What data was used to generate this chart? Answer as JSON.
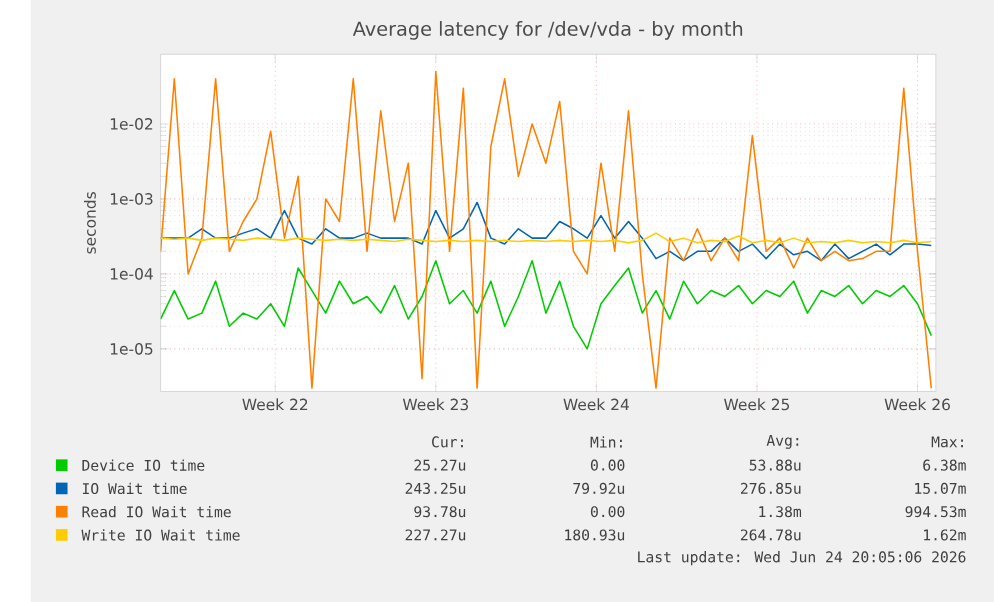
{
  "chart_data": {
    "type": "line",
    "title": "Average latency for /dev/vda - by month",
    "ylabel": "seconds",
    "log": true,
    "grid": true,
    "legend": "bottom",
    "x": [
      "2026-05-20T00:00",
      "2026-05-20T14:24",
      "2026-05-21T04:48",
      "2026-05-21T19:12",
      "2026-05-22T09:36",
      "2026-05-23T00:00",
      "2026-05-23T14:24",
      "2026-05-24T04:48",
      "2026-05-24T19:12",
      "2026-05-25T09:36",
      "2026-05-26T00:00",
      "2026-05-26T14:24",
      "2026-05-27T04:48",
      "2026-05-27T19:12",
      "2026-05-28T09:36",
      "2026-05-29T00:00",
      "2026-05-29T14:24",
      "2026-05-30T04:48",
      "2026-05-30T19:12",
      "2026-05-31T09:36",
      "2026-06-01T00:00",
      "2026-06-01T14:24",
      "2026-06-02T04:48",
      "2026-06-02T19:12",
      "2026-06-03T09:36",
      "2026-06-04T00:00",
      "2026-06-04T14:24",
      "2026-06-05T04:48",
      "2026-06-05T19:12",
      "2026-06-06T09:36",
      "2026-06-07T00:00",
      "2026-06-07T14:24",
      "2026-06-08T04:48",
      "2026-06-08T19:12",
      "2026-06-09T09:36",
      "2026-06-10T00:00",
      "2026-06-10T14:24",
      "2026-06-11T04:48",
      "2026-06-11T19:12",
      "2026-06-12T09:36",
      "2026-06-13T00:00",
      "2026-06-13T14:24",
      "2026-06-14T04:48",
      "2026-06-14T19:12",
      "2026-06-15T09:36",
      "2026-06-16T00:00",
      "2026-06-16T14:24",
      "2026-06-17T04:48",
      "2026-06-17T19:12",
      "2026-06-18T09:36",
      "2026-06-19T00:00",
      "2026-06-19T14:24",
      "2026-06-20T04:48",
      "2026-06-20T19:12",
      "2026-06-21T09:36",
      "2026-06-22T00:00",
      "2026-06-22T14:24"
    ],
    "xlim": [
      "2026-05-20T00:00",
      "2026-06-22T19:12"
    ],
    "xticks": [
      {
        "value": "2026-05-25",
        "label": "Week 22"
      },
      {
        "value": "2026-06-01",
        "label": "Week 23"
      },
      {
        "value": "2026-06-08",
        "label": "Week 24"
      },
      {
        "value": "2026-06-15",
        "label": "Week 25"
      },
      {
        "value": "2026-06-22",
        "label": "Week 26"
      }
    ],
    "ylim": [
      2.7e-06,
      0.085
    ],
    "yticks": [
      {
        "value": 1e-05,
        "label": "1e-05"
      },
      {
        "value": 0.0001,
        "label": "1e-04"
      },
      {
        "value": 0.001,
        "label": "1e-03"
      },
      {
        "value": 0.01,
        "label": "1e-02"
      }
    ],
    "series": [
      {
        "name": "Device IO time",
        "color": "#00cc00",
        "values": [
          2.5e-05,
          6e-05,
          2.5e-05,
          3e-05,
          8e-05,
          2e-05,
          3e-05,
          2.5e-05,
          4e-05,
          2e-05,
          0.00012,
          6e-05,
          3e-05,
          8e-05,
          4e-05,
          5e-05,
          3e-05,
          7e-05,
          2.5e-05,
          5e-05,
          0.00015,
          4e-05,
          6e-05,
          3e-05,
          8e-05,
          2e-05,
          5e-05,
          0.00015,
          3e-05,
          8e-05,
          2e-05,
          1e-05,
          4e-05,
          7e-05,
          0.00012,
          3e-05,
          6e-05,
          2.5e-05,
          8e-05,
          4e-05,
          6e-05,
          5e-05,
          7e-05,
          4e-05,
          6e-05,
          5e-05,
          8e-05,
          3e-05,
          6e-05,
          5e-05,
          7e-05,
          4e-05,
          6e-05,
          5e-05,
          7e-05,
          4e-05,
          1.5e-05
        ]
      },
      {
        "name": "IO Wait time",
        "color": "#0066b3",
        "values": [
          0.0003,
          0.0003,
          0.0003,
          0.0004,
          0.0003,
          0.0003,
          0.00035,
          0.0004,
          0.0003,
          0.0007,
          0.0003,
          0.00025,
          0.0004,
          0.0003,
          0.0003,
          0.00035,
          0.0003,
          0.0003,
          0.0003,
          0.00025,
          0.0007,
          0.0003,
          0.0004,
          0.0009,
          0.0003,
          0.00025,
          0.0004,
          0.0003,
          0.0003,
          0.0005,
          0.0004,
          0.0003,
          0.0006,
          0.0003,
          0.0005,
          0.0003,
          0.00016,
          0.0002,
          0.00015,
          0.0002,
          0.0002,
          0.0003,
          0.0002,
          0.00025,
          0.00016,
          0.00025,
          0.00018,
          0.0002,
          0.00015,
          0.00025,
          0.00016,
          0.0002,
          0.00025,
          0.00018,
          0.00025,
          0.00025,
          0.00024
        ]
      },
      {
        "name": "Read IO Wait time",
        "color": "#ff8000",
        "values": [
          0.0002,
          0.04,
          0.0001,
          0.0003,
          0.04,
          0.0002,
          0.0005,
          0.001,
          0.008,
          0.0003,
          0.002,
          3e-06,
          0.001,
          0.0005,
          0.04,
          0.0002,
          0.015,
          0.0005,
          0.003,
          4e-06,
          0.05,
          0.0002,
          0.03,
          3e-06,
          0.005,
          0.04,
          0.002,
          0.01,
          0.003,
          0.02,
          0.0002,
          0.0001,
          0.003,
          0.0002,
          0.015,
          0.0001,
          3e-06,
          0.0003,
          0.00015,
          0.0004,
          0.00015,
          0.0003,
          0.00015,
          0.007,
          0.0002,
          0.0003,
          0.00012,
          0.0003,
          0.00015,
          0.0002,
          0.00015,
          0.00016,
          0.0002,
          0.0002,
          0.03,
          0.0002,
          3e-06
        ]
      },
      {
        "name": "Write IO Wait time",
        "color": "#ffcc00",
        "values": [
          0.0003,
          0.00029,
          0.0003,
          0.00028,
          0.0003,
          0.00029,
          0.00028,
          0.0003,
          0.00029,
          0.00028,
          0.0003,
          0.00029,
          0.00028,
          0.00029,
          0.00028,
          0.00029,
          0.00028,
          0.00027,
          0.00029,
          0.00028,
          0.00027,
          0.00028,
          0.00027,
          0.00028,
          0.00027,
          0.00028,
          0.00027,
          0.00028,
          0.00027,
          0.00028,
          0.00027,
          0.00028,
          0.00027,
          0.00028,
          0.00026,
          0.00028,
          0.00035,
          0.00027,
          0.0003,
          0.00026,
          0.00028,
          0.00027,
          0.00032,
          0.00026,
          0.00028,
          0.00026,
          0.0003,
          0.00026,
          0.00027,
          0.00026,
          0.00028,
          0.00026,
          0.00027,
          0.00026,
          0.00028,
          0.00026,
          0.00027
        ]
      }
    ],
    "annotations": [
      "Cur:",
      "Min:",
      "Avg:",
      "Max:",
      "25.27u",
      "0.00",
      "53.88u",
      "6.38m",
      "243.25u",
      "79.92u",
      "276.85u",
      "15.07m",
      "93.78u",
      "0.00",
      "1.38m",
      "994.53m",
      "227.27u",
      "180.93u",
      "264.78u",
      "1.62m",
      "Last update: Wed Jun 24 20:05:06 2026"
    ]
  }
}
